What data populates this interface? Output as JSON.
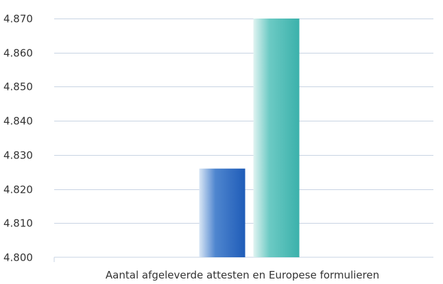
{
  "chart_data": {
    "type": "bar",
    "title": "",
    "xlabel": "",
    "ylabel": "",
    "categories": [
      "Aantal afgeleverde attesten en Europese formulieren"
    ],
    "series": [
      {
        "values": [
          4826
        ],
        "color": "#2563bd"
      },
      {
        "values": [
          4870
        ],
        "color": "#3fb3ad"
      }
    ],
    "ylim": [
      4800,
      4870
    ],
    "yticks": [
      4800,
      4810,
      4820,
      4830,
      4840,
      4850,
      4860,
      4870
    ],
    "ytick_labels": [
      "4.800",
      "4.810",
      "4.820",
      "4.830",
      "4.840",
      "4.850",
      "4.860",
      "4.870"
    ],
    "grid": true,
    "legend": "none"
  }
}
